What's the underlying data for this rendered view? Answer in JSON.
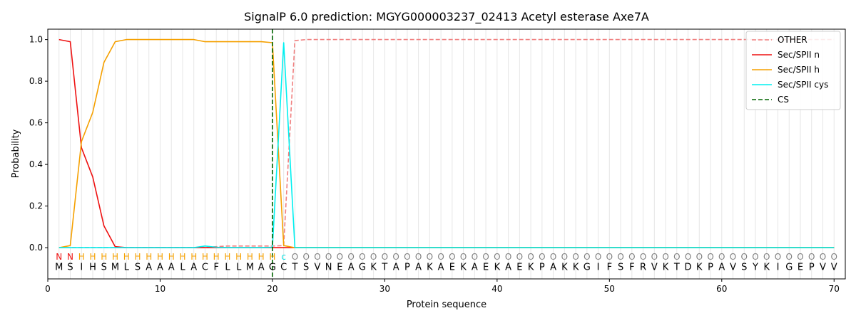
{
  "chart_data": {
    "type": "line",
    "title": "SignalP 6.0 prediction: MGYG000003237_02413 Acetyl esterase Axe7A",
    "xlabel": "Protein sequence",
    "ylabel": "Probability",
    "xlim": [
      0,
      71
    ],
    "ylim": [
      -0.15,
      1.05
    ],
    "xticks": [
      0,
      10,
      20,
      30,
      40,
      50,
      60,
      70
    ],
    "yticks": [
      0.0,
      0.2,
      0.4,
      0.6,
      0.8,
      1.0
    ],
    "xtick_labels": [
      "0",
      "10",
      "20",
      "30",
      "40",
      "50",
      "60",
      "70"
    ],
    "ytick_labels": [
      "0.0",
      "0.2",
      "0.4",
      "0.6",
      "0.8",
      "1.0"
    ],
    "grid": "vertical lines at each residue position",
    "legend_position": "top-right",
    "x": [
      1,
      2,
      3,
      4,
      5,
      6,
      7,
      8,
      9,
      10,
      11,
      12,
      13,
      14,
      15,
      16,
      17,
      18,
      19,
      20,
      21,
      22,
      23,
      24,
      25,
      26,
      27,
      28,
      29,
      30,
      31,
      32,
      33,
      34,
      35,
      36,
      37,
      38,
      39,
      40,
      41,
      42,
      43,
      44,
      45,
      46,
      47,
      48,
      49,
      50,
      51,
      52,
      53,
      54,
      55,
      56,
      57,
      58,
      59,
      60,
      61,
      62,
      63,
      64,
      65,
      66,
      67,
      68,
      69,
      70
    ],
    "series": [
      {
        "name": "OTHER",
        "color": "#f08080",
        "dash": "dashed",
        "values": [
          0,
          0,
          0,
          0,
          0,
          0,
          0,
          0,
          0,
          0,
          0,
          0,
          0,
          0,
          0.005,
          0.008,
          0.008,
          0.008,
          0.008,
          0.008,
          0.01,
          0.995,
          1,
          1,
          1,
          1,
          1,
          1,
          1,
          1,
          1,
          1,
          1,
          1,
          1,
          1,
          1,
          1,
          1,
          1,
          1,
          1,
          1,
          1,
          1,
          1,
          1,
          1,
          1,
          1,
          1,
          1,
          1,
          1,
          1,
          1,
          1,
          1,
          1,
          1,
          1,
          1,
          1,
          1,
          1,
          1,
          1,
          1,
          1,
          1
        ]
      },
      {
        "name": "Sec/SPII n",
        "color": "#ee1111",
        "dash": "solid",
        "values": [
          1.0,
          0.99,
          0.48,
          0.34,
          0.105,
          0.005,
          0,
          0,
          0,
          0,
          0,
          0,
          0,
          0,
          0,
          0,
          0,
          0,
          0,
          0,
          0,
          0,
          0,
          0,
          0,
          0,
          0,
          0,
          0,
          0,
          0,
          0,
          0,
          0,
          0,
          0,
          0,
          0,
          0,
          0,
          0,
          0,
          0,
          0,
          0,
          0,
          0,
          0,
          0,
          0,
          0,
          0,
          0,
          0,
          0,
          0,
          0,
          0,
          0,
          0,
          0,
          0,
          0,
          0,
          0,
          0,
          0,
          0,
          0,
          0
        ]
      },
      {
        "name": "Sec/SPII h",
        "color": "#f5a000",
        "dash": "solid",
        "values": [
          0,
          0.01,
          0.51,
          0.65,
          0.89,
          0.99,
          1.0,
          1.0,
          1.0,
          1.0,
          1.0,
          1.0,
          1.0,
          0.99,
          0.99,
          0.99,
          0.99,
          0.99,
          0.99,
          0.985,
          0.01,
          0,
          0,
          0,
          0,
          0,
          0,
          0,
          0,
          0,
          0,
          0,
          0,
          0,
          0,
          0,
          0,
          0,
          0,
          0,
          0,
          0,
          0,
          0,
          0,
          0,
          0,
          0,
          0,
          0,
          0,
          0,
          0,
          0,
          0,
          0,
          0,
          0,
          0,
          0,
          0,
          0,
          0,
          0,
          0,
          0,
          0,
          0,
          0,
          0
        ]
      },
      {
        "name": "Sec/SPII cys",
        "color": "#00f0f0",
        "dash": "solid",
        "values": [
          0,
          0,
          0,
          0,
          0,
          0,
          0,
          0,
          0,
          0,
          0,
          0,
          0,
          0.008,
          0.002,
          0,
          0,
          0,
          0,
          0.002,
          0.985,
          0,
          0,
          0,
          0,
          0,
          0,
          0,
          0,
          0,
          0,
          0,
          0,
          0,
          0,
          0,
          0,
          0,
          0,
          0,
          0,
          0,
          0,
          0,
          0,
          0,
          0,
          0,
          0,
          0,
          0,
          0,
          0,
          0,
          0,
          0,
          0,
          0,
          0,
          0,
          0,
          0,
          0,
          0,
          0,
          0,
          0,
          0,
          0,
          0
        ]
      }
    ],
    "cleavage_site": {
      "name": "CS",
      "x": 20,
      "color": "#006400",
      "dash": "dashed"
    },
    "residues": [
      "M",
      "S",
      "I",
      "H",
      "S",
      "M",
      "L",
      "S",
      "A",
      "A",
      "A",
      "L",
      "A",
      "C",
      "F",
      "L",
      "L",
      "M",
      "A",
      "G",
      "C",
      "T",
      "S",
      "V",
      "N",
      "E",
      "A",
      "G",
      "K",
      "T",
      "A",
      "P",
      "A",
      "K",
      "A",
      "E",
      "K",
      "A",
      "E",
      "K",
      "A",
      "E",
      "K",
      "P",
      "A",
      "K",
      "K",
      "G",
      "I",
      "F",
      "S",
      "F",
      "R",
      "V",
      "K",
      "T",
      "D",
      "K",
      "P",
      "A",
      "V",
      "S",
      "Y",
      "K",
      "I",
      "G",
      "E",
      "P",
      "V",
      "V"
    ],
    "labels": [
      "N",
      "N",
      "H",
      "H",
      "H",
      "H",
      "H",
      "H",
      "H",
      "H",
      "H",
      "H",
      "H",
      "H",
      "H",
      "H",
      "H",
      "H",
      "H",
      "H",
      "c",
      "O",
      "O",
      "O",
      "O",
      "O",
      "O",
      "O",
      "O",
      "O",
      "O",
      "O",
      "O",
      "O",
      "O",
      "O",
      "O",
      "O",
      "O",
      "O",
      "O",
      "O",
      "O",
      "O",
      "O",
      "O",
      "O",
      "O",
      "O",
      "O",
      "O",
      "O",
      "O",
      "O",
      "O",
      "O",
      "O",
      "O",
      "O",
      "O",
      "O",
      "O",
      "O",
      "O",
      "O",
      "O",
      "O",
      "O",
      "O",
      "O"
    ],
    "label_colors": {
      "N": "#ee1111",
      "H": "#f5a000",
      "c": "#00e0e0",
      "O": "#808080"
    }
  }
}
